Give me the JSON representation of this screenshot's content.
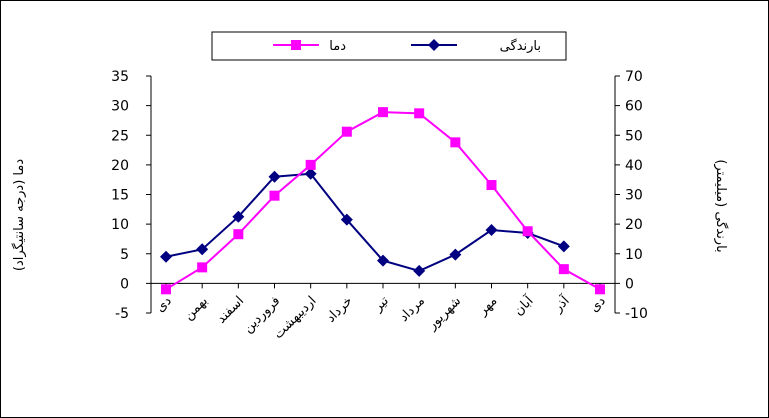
{
  "chart_data": {
    "type": "line",
    "categories": [
      "دی",
      "بهمن",
      "اسفند",
      "فروردین",
      "اردیبهشت",
      "خرداد",
      "تیر",
      "مرداد",
      "شهریور",
      "مهر",
      "آبان",
      "آذر",
      "دی"
    ],
    "left_axis": {
      "label": "دما (درجه سانتیگراد)",
      "ylim": [
        -5,
        35
      ],
      "ticks": [
        -5,
        0,
        5,
        10,
        15,
        20,
        25,
        30,
        35
      ]
    },
    "right_axis": {
      "label": "بارندگی (میلیمتر)",
      "ylim": [
        -10,
        70
      ],
      "ticks": [
        -10,
        0,
        10,
        20,
        30,
        40,
        50,
        60,
        70
      ]
    },
    "series": [
      {
        "name": "دما",
        "axis": "left",
        "color": "#ff00ff",
        "marker": "square",
        "values": [
          -1,
          2.7,
          8.3,
          14.8,
          20,
          25.6,
          28.9,
          28.7,
          23.8,
          16.6,
          8.8,
          2.4,
          -1
        ]
      },
      {
        "name": "بارندگی",
        "axis": "right",
        "color": "#000080",
        "marker": "diamond",
        "values": [
          9,
          11.5,
          22.5,
          36,
          37,
          21.5,
          7.7,
          4.2,
          9.7,
          18,
          17,
          12.5,
          null
        ]
      }
    ],
    "legend": {
      "placement": "top"
    },
    "grid": false
  }
}
